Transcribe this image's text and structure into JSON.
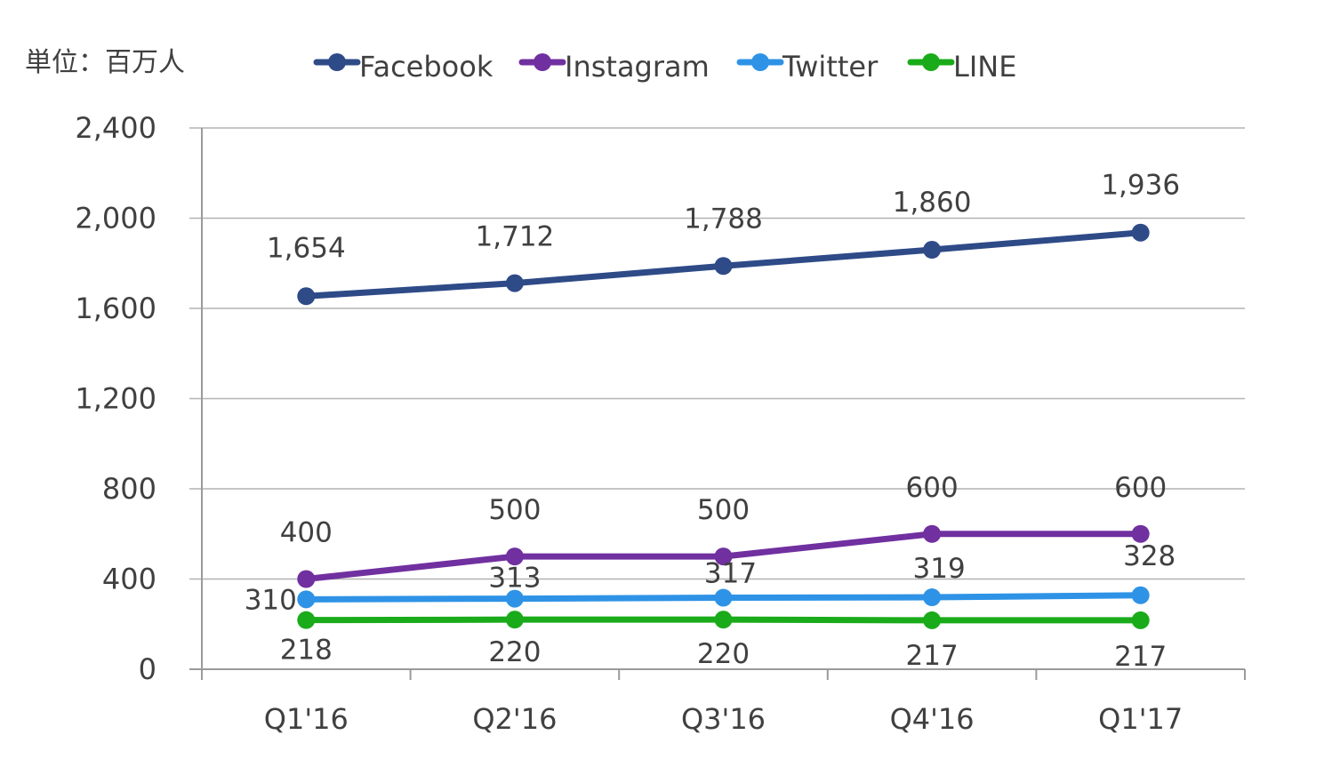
{
  "unit_label": "単位：百万人",
  "colors": {
    "Facebook": "#2e4a87",
    "Instagram": "#7030a0",
    "Twitter": "#2e93e6",
    "LINE": "#1aab1a"
  },
  "chart_data": {
    "type": "line",
    "title": "",
    "xlabel": "",
    "ylabel": "",
    "categories": [
      "Q1'16",
      "Q2'16",
      "Q3'16",
      "Q4'16",
      "Q1'17"
    ],
    "ylim": [
      0,
      2400
    ],
    "yticks": [
      0,
      400,
      800,
      1200,
      1600,
      2000,
      2400
    ],
    "ytick_labels": [
      "0",
      "400",
      "800",
      "1,200",
      "1,600",
      "2,000",
      "2,400"
    ],
    "grid": true,
    "legend_position": "top",
    "series": [
      {
        "name": "Facebook",
        "values": [
          1654,
          1712,
          1788,
          1860,
          1936
        ],
        "labels": [
          "1,654",
          "1,712",
          "1,788",
          "1,860",
          "1,936"
        ]
      },
      {
        "name": "Instagram",
        "values": [
          400,
          500,
          500,
          600,
          600
        ],
        "labels": [
          "400",
          "500",
          "500",
          "600",
          "600"
        ]
      },
      {
        "name": "Twitter",
        "values": [
          310,
          313,
          317,
          319,
          328
        ],
        "labels": [
          "310",
          "313",
          "317",
          "319",
          "328"
        ]
      },
      {
        "name": "LINE",
        "values": [
          218,
          220,
          220,
          217,
          217
        ],
        "labels": [
          "218",
          "220",
          "220",
          "217",
          "217"
        ]
      }
    ]
  }
}
